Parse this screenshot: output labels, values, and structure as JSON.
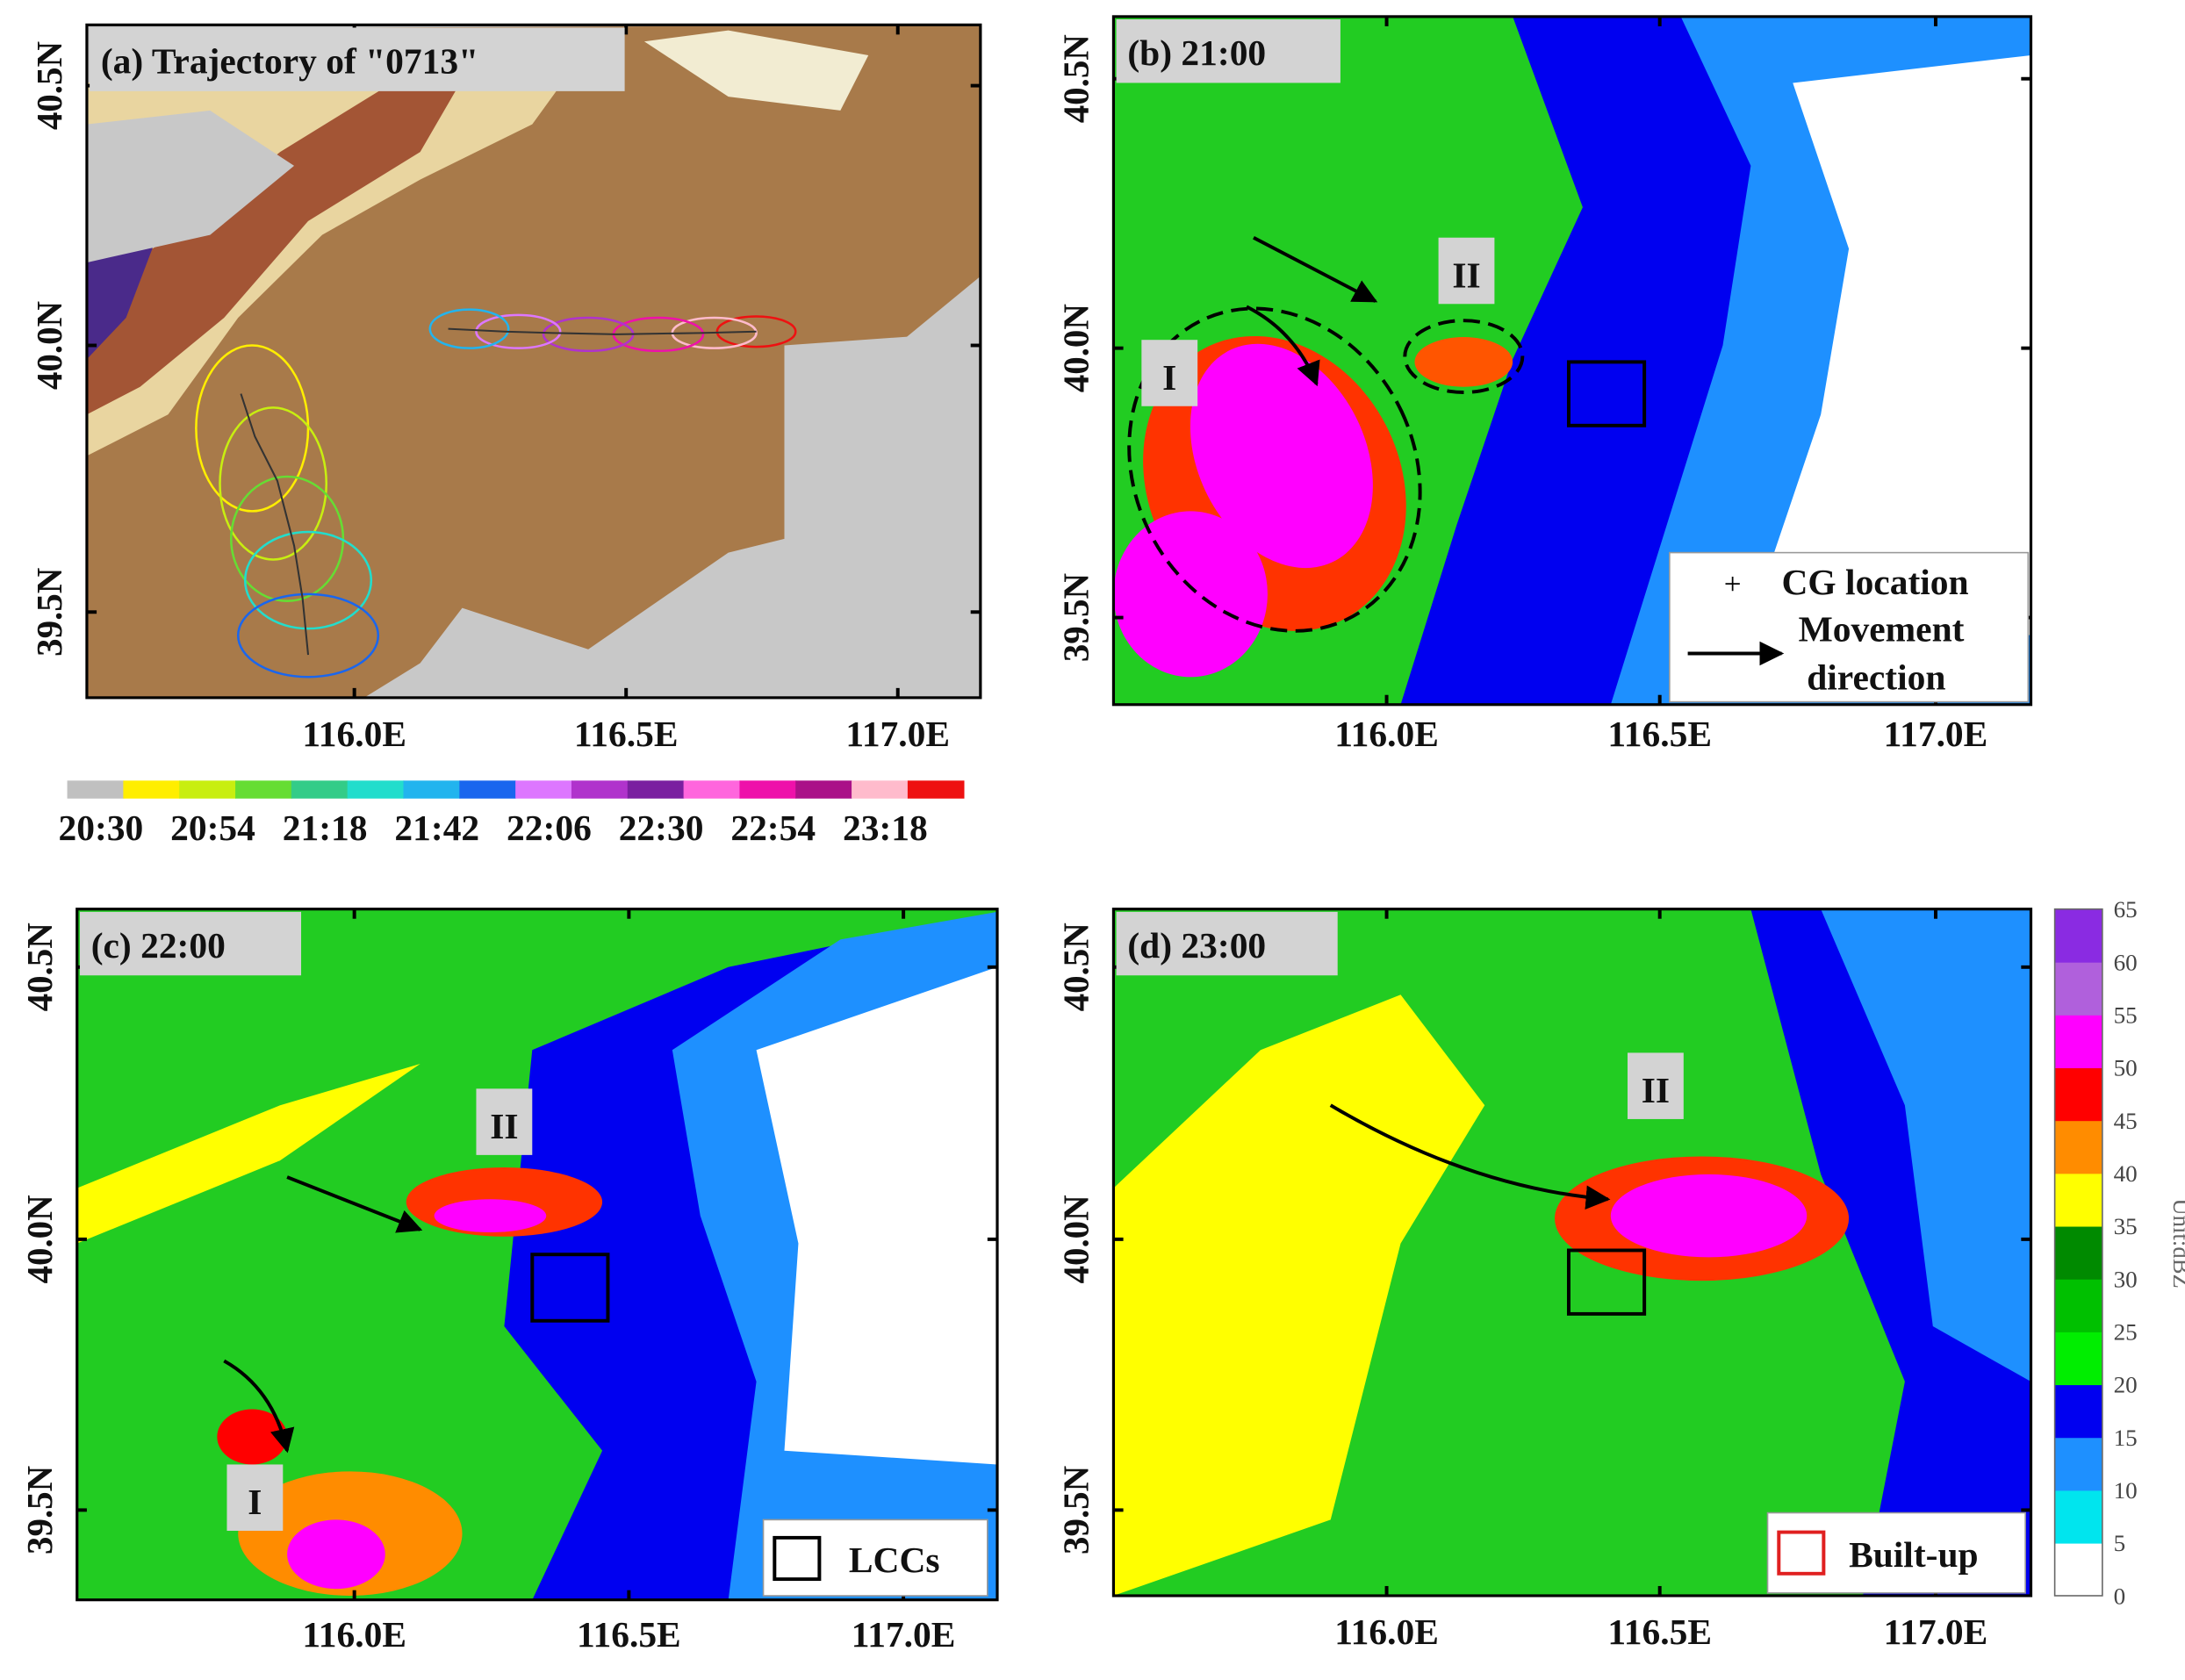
{
  "panels": [
    {
      "title": "(a) Trajectory of \"0713\"",
      "lon_labels": [
        "116.0E",
        "116.5E",
        "117.0E"
      ],
      "lat_labels": [
        "40.5N",
        "40.0N",
        "39.5N"
      ],
      "regions": []
    },
    {
      "title": "(b) 21:00",
      "lon_labels": [
        "116.0E",
        "116.5E",
        "117.0E"
      ],
      "lat_labels": [
        "40.5N",
        "40.0N",
        "39.5N"
      ],
      "regions": [
        "I",
        "II"
      ]
    },
    {
      "title": "(c) 22:00",
      "lon_labels": [
        "116.0E",
        "116.5E",
        "117.0E"
      ],
      "lat_labels": [
        "40.5N",
        "40.0N",
        "39.5N"
      ],
      "regions": [
        "II",
        "I"
      ]
    },
    {
      "title": "(d) 23:00",
      "lon_labels": [
        "116.0E",
        "116.5E",
        "117.0E"
      ],
      "lat_labels": [
        "40.5N",
        "40.0N",
        "39.5N"
      ],
      "regions": [
        "II"
      ]
    }
  ],
  "time_colorbar": {
    "labels": [
      "20:30",
      "20:54",
      "21:18",
      "21:42",
      "22:06",
      "22:30",
      "22:54",
      "23:18"
    ],
    "colors": [
      "#c0c0c0",
      "#ffee00",
      "#c8ee10",
      "#66dd33",
      "#33cc88",
      "#22ddcc",
      "#22b4ee",
      "#1a66ee",
      "#dd77ff",
      "#b033cc",
      "#7a1fa0",
      "#ff66dd",
      "#ee11aa",
      "#aa1188",
      "#ffbbcc",
      "#ee1111"
    ]
  },
  "dbz_colorbar": {
    "unit": "Unit:dBZ",
    "ticks": [
      0,
      5,
      10,
      15,
      20,
      25,
      30,
      35,
      40,
      45,
      50,
      55,
      60,
      65
    ],
    "colors": [
      "#ffffff",
      "#00e5ee",
      "#1e90ff",
      "#0000f0",
      "#00ee00",
      "#00c000",
      "#008a00",
      "#ffff00",
      "#ff8c00",
      "#ff0000",
      "#ff00ff",
      "#b060dc",
      "#8a2be2"
    ]
  },
  "legend_b": {
    "cg": "CG location",
    "movement": [
      "Movement",
      "direction"
    ]
  },
  "legend_c": {
    "lcc": "LCCs"
  },
  "legend_d": {
    "built": "Built-up"
  }
}
